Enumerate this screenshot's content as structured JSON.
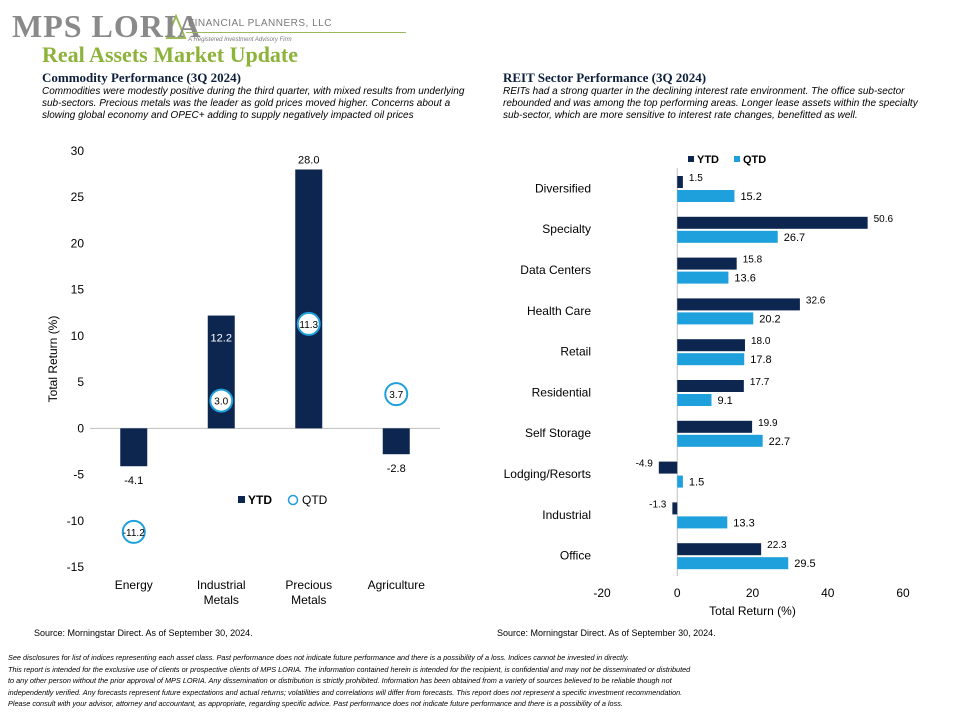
{
  "logo": {
    "name": "MPS LORIA",
    "subtitle": "FINANCIAL PLANNERS, LLC",
    "tagline": "A Registered Investment Advisory Firm"
  },
  "page_title": "Real Assets Market Update",
  "commodity": {
    "title": "Commodity Performance (3Q 2024)",
    "description": "Commodities were modestly positive during the third quarter, with mixed results from underlying sub-sectors. Precious metals was the leader as gold prices moved higher. Concerns about a slowing global economy and OPEC+ adding to supply negatively impacted oil prices",
    "source": "Source: Morningstar Direct. As of September 30, 2024."
  },
  "reit": {
    "title": "REIT Sector Performance (3Q 2024)",
    "description": "REITs had a strong quarter in the declining interest rate environment. The office sub-sector rebounded and was among the top performing areas. Longer lease assets within the specialty sub-sector, which are more sensitive to interest rate changes, benefitted as well.",
    "source": "Source: Morningstar Direct. As of September 30, 2024."
  },
  "disclaimer": [
    " See disclosures for list of indices representing each asset class. Past performance does not indicate future performance and there is a possibility of a loss. Indices cannot be invested in directly.",
    "This report is intended for the exclusive use of clients or prospective clients of MPS LORIA. The information contained herein is intended for the recipient, is confidential and may not be disseminated or distributed",
    "to any other person without the prior approval of MPS LORIA. Any dissemination or distribution is strictly prohibited. Information has been obtained from a variety of sources believed to be reliable though not",
    "independently verified. Any forecasts represent future expectations and actual returns; volatilities and correlations will differ from forecasts. This report does not represent a specific investment recommendation.",
    "Please consult with your advisor, attorney and accountant, as appropriate, regarding specific advice. Past performance does not indicate future performance and there is a possibility of a loss."
  ],
  "colors": {
    "ytd": "#0d2650",
    "qtd": "#1ea0dc",
    "title_green": "#8db33a"
  },
  "chart_data": [
    {
      "type": "bar",
      "categories": [
        "Energy",
        "Industrial Metals",
        "Precious Metals",
        "Agriculture"
      ],
      "category_lines": [
        [
          "Energy"
        ],
        [
          "Industrial",
          "Metals"
        ],
        [
          "Precious",
          "Metals"
        ],
        [
          "Agriculture"
        ]
      ],
      "series": [
        {
          "name": "YTD",
          "values": [
            -4.1,
            12.2,
            28.0,
            -2.8
          ],
          "labels": [
            "-4.1",
            "12.2",
            "28.0",
            "-2.8"
          ],
          "style": "bar"
        },
        {
          "name": "QTD",
          "values": [
            -11.2,
            3.0,
            11.3,
            3.7
          ],
          "labels": [
            "-11.2",
            "3.0",
            "11.3",
            "3.7"
          ],
          "style": "circle-marker"
        }
      ],
      "ylabel": "Total Return (%)",
      "ylim": [
        -15,
        30
      ],
      "yticks": [
        -15,
        -10,
        -5,
        0,
        5,
        10,
        15,
        20,
        25,
        30
      ],
      "legend": "bottom-right",
      "grid": false
    },
    {
      "type": "bar",
      "orientation": "horizontal",
      "categories": [
        "Diversified",
        "Specialty",
        "Data Centers",
        "Health Care",
        "Retail",
        "Residential",
        "Self Storage",
        "Lodging/Resorts",
        "Industrial",
        "Office"
      ],
      "series": [
        {
          "name": "YTD",
          "values": [
            1.5,
            50.6,
            15.8,
            32.6,
            18.0,
            17.7,
            19.9,
            -4.9,
            -1.3,
            22.3
          ],
          "labels": [
            "1.5",
            "50.6",
            "15.8",
            "32.6",
            "18.0",
            "17.7",
            "19.9",
            "-4.9",
            "-1.3",
            "22.3"
          ]
        },
        {
          "name": "QTD",
          "values": [
            15.2,
            26.7,
            13.6,
            20.2,
            17.8,
            9.1,
            22.7,
            1.5,
            13.3,
            29.5
          ],
          "labels": [
            "15.2",
            "26.7",
            "13.6",
            "20.2",
            "17.8",
            "9.1",
            "22.7",
            "1.5",
            "13.3",
            "29.5"
          ]
        }
      ],
      "xlabel": "Total Return (%)",
      "xlim": [
        -20,
        60
      ],
      "xticks": [
        -20,
        0,
        20,
        40,
        60
      ],
      "legend": "top",
      "grid": false
    }
  ]
}
